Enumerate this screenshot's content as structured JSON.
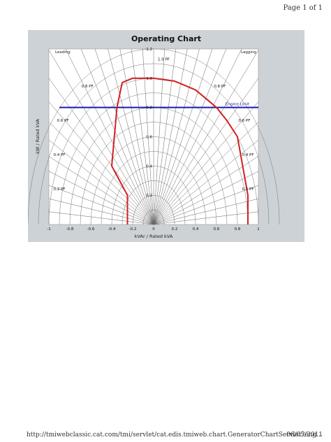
{
  "page": {
    "header": "Page 1 of 1",
    "footer_url": "http://tmiwebclassic.cat.com/tmi/servlet/cat.edis.tmiweb.chart.GeneratorChartServlet?eng...",
    "footer_date": "06/05/2011"
  },
  "chart_data": {
    "type": "line",
    "title": "Operating Chart",
    "xlabel": "kVAr / Rated kVA",
    "ylabel": "kW / Rated kVA",
    "xlim": [
      -1,
      1
    ],
    "ylim": [
      0,
      1.2
    ],
    "x_ticks": [
      -1,
      -0.8,
      -0.6,
      -0.4,
      -0.2,
      0,
      0.2,
      0.4,
      0.6,
      0.8,
      1
    ],
    "x_tick_labels": [
      "-1",
      "-0.8",
      "-0.6",
      "-0.4",
      "-0.2",
      "0",
      "0.2",
      "0.4",
      "0.6",
      "0.8",
      "1"
    ],
    "y_ticks": [
      0.2,
      0.4,
      0.6,
      0.8,
      1.0,
      1.2
    ],
    "y_tick_labels": [
      "0.2",
      "0.4",
      "0.6",
      "0.8",
      "1.0",
      "1.2"
    ],
    "grid": true,
    "region_labels": {
      "leading": "Leading",
      "lagging": "Lagging"
    },
    "pf_lines": [
      {
        "pf": 0.8,
        "label": "0.8 PF"
      },
      {
        "pf": 0.6,
        "label": "0.6 PF"
      },
      {
        "pf": 0.4,
        "label": "0.4 PF"
      },
      {
        "pf": 0.2,
        "label": "0.2 PF"
      }
    ],
    "unity_pf_label": "1.0 PF",
    "engine_limit": {
      "value": 0.8,
      "label": "Engine Limit",
      "x_range": [
        -0.9,
        1.0
      ],
      "color": "#1a1aa8"
    },
    "capability_curve": {
      "color": "#d42020",
      "points": [
        [
          -0.25,
          0.0
        ],
        [
          -0.25,
          0.2
        ],
        [
          -0.4,
          0.4
        ],
        [
          -0.35,
          0.8
        ],
        [
          -0.3,
          0.97
        ],
        [
          -0.2,
          1.0
        ],
        [
          0.0,
          1.0
        ],
        [
          0.2,
          0.98
        ],
        [
          0.4,
          0.92
        ],
        [
          0.6,
          0.8
        ],
        [
          0.7,
          0.71
        ],
        [
          0.8,
          0.6
        ],
        [
          0.85,
          0.4
        ],
        [
          0.9,
          0.2
        ],
        [
          0.9,
          0.0
        ]
      ]
    }
  }
}
